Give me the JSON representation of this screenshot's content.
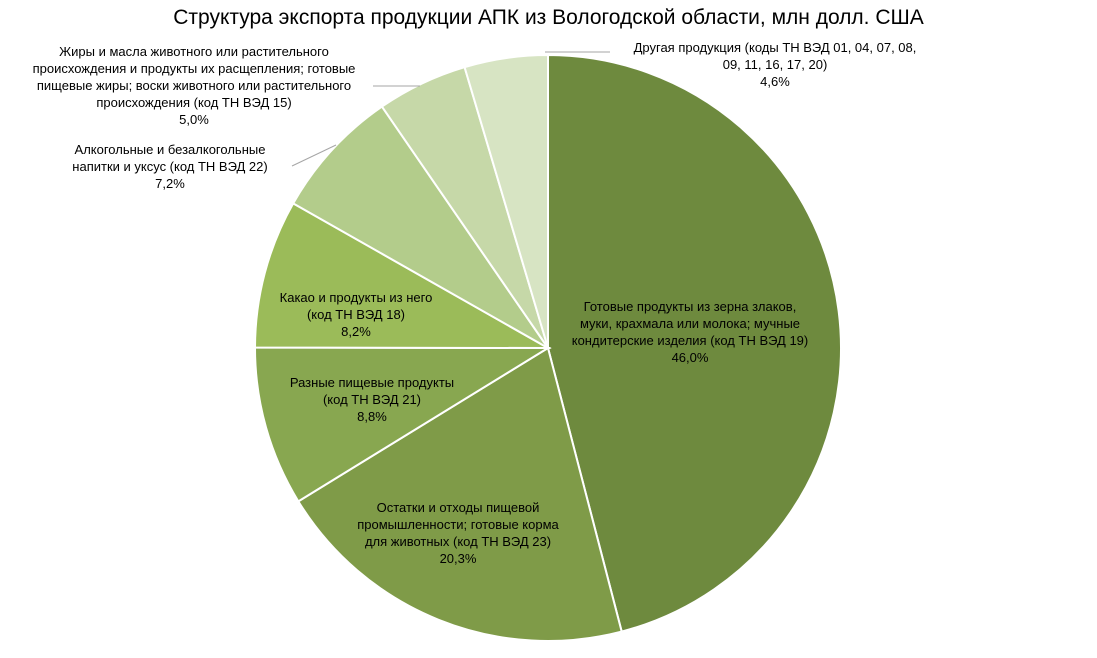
{
  "chart_data": {
    "type": "pie",
    "title": "Структура экспорта продукции АПК из Вологодской области, млн долл. США",
    "slices": [
      {
        "label_lines": [
          "Готовые продукты из зерна злаков,",
          "муки, крахмала или молока; мучные",
          "кондитерские изделия (код ТН ВЭД 19)"
        ],
        "value": 46.0,
        "pct_label": "46,0%",
        "color": "#6e8a3e"
      },
      {
        "label_lines": [
          "Остатки и отходы пищевой",
          "промышленности; готовые корма",
          "для животных (код ТН ВЭД 23)"
        ],
        "value": 20.3,
        "pct_label": "20,3%",
        "color": "#7f9b48"
      },
      {
        "label_lines": [
          "Разные пищевые продукты",
          "(код ТН ВЭД 21)"
        ],
        "value": 8.8,
        "pct_label": "8,8%",
        "color": "#88a750"
      },
      {
        "label_lines": [
          "Какао и продукты из него",
          "(код ТН ВЭД 18)"
        ],
        "value": 8.2,
        "pct_label": "8,2%",
        "color": "#9bbb59"
      },
      {
        "label_lines": [
          "Алкогольные и безалкогольные",
          "напитки и уксус (код ТН ВЭД 22)"
        ],
        "value": 7.2,
        "pct_label": "7,2%",
        "color": "#b3cc8b"
      },
      {
        "label_lines": [
          "Жиры и масла животного или растительного",
          "происхождения и продукты их расщепления; готовые",
          "пищевые жиры; воски животного или растительного",
          "происхождения (код ТН ВЭД 15)"
        ],
        "value": 5.0,
        "pct_label": "5,0%",
        "color": "#c6d8a8"
      },
      {
        "label_lines": [
          "Другая продукция (коды ТН ВЭД 01, 04, 07, 08,",
          "09, 11, 16, 17, 20)"
        ],
        "value": 4.6,
        "pct_label": "4,6%",
        "color": "#d7e4c3"
      }
    ]
  }
}
